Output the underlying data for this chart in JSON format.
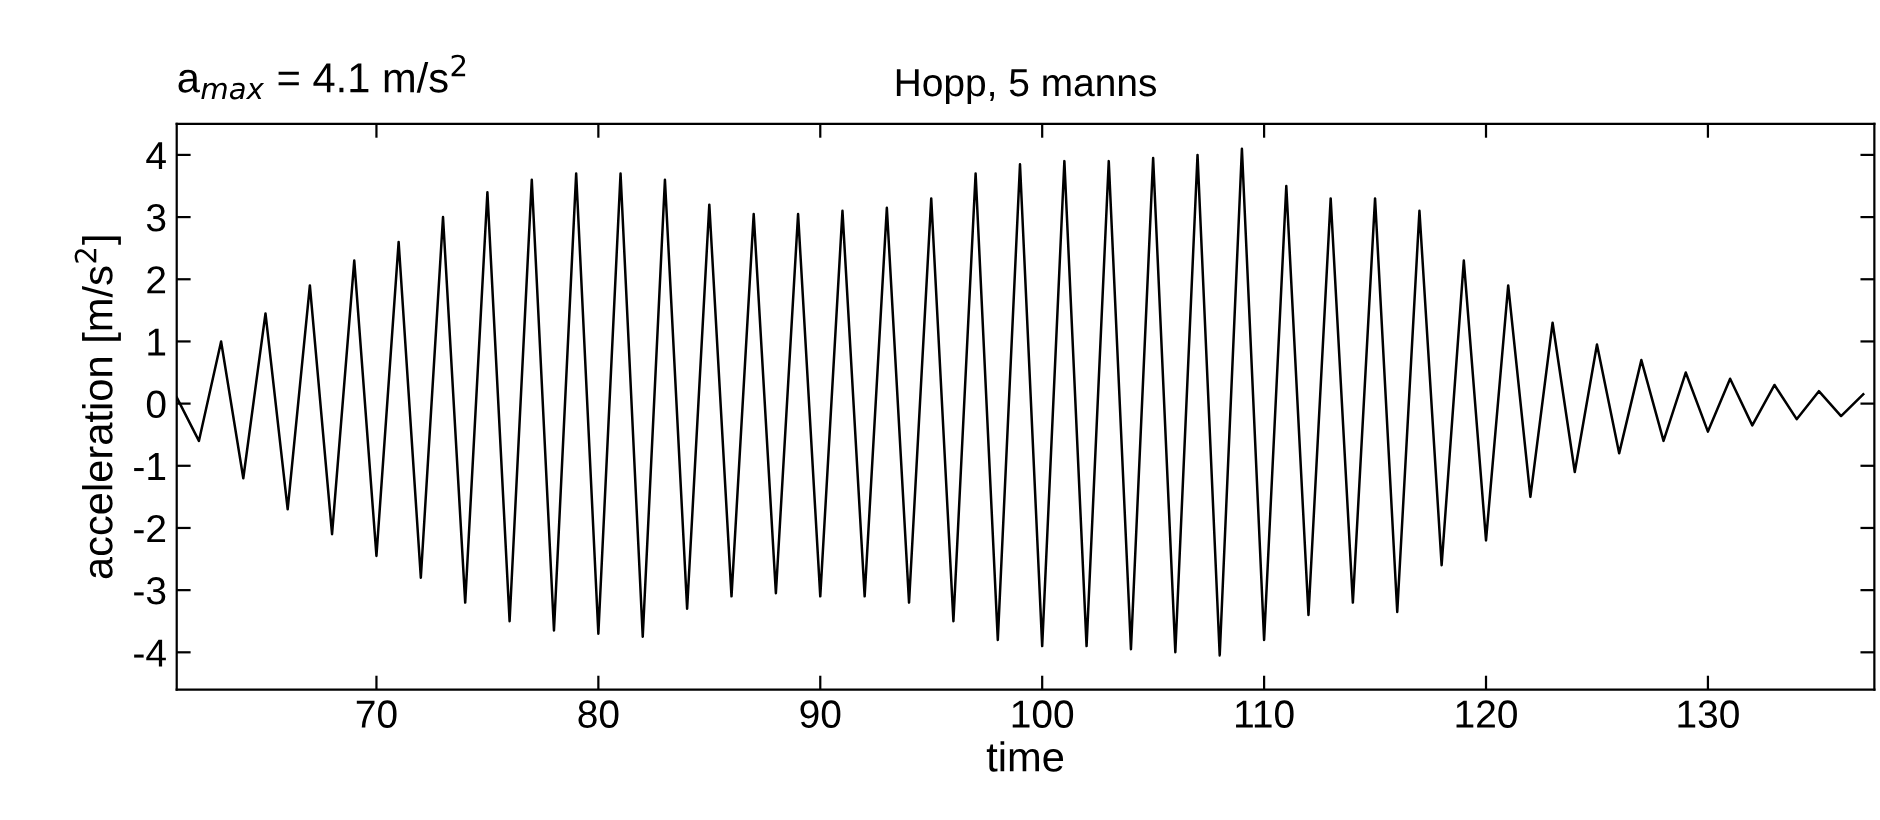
{
  "chart_data": {
    "type": "line",
    "title": "Hopp, 5 manns",
    "xlabel": "time",
    "ylabel": "acceleration [m/s$^{2}$]",
    "annotations": [
      "a$_{max}$ = 4.1 m/s$^{2}$"
    ],
    "x": [
      61,
      62,
      63,
      64,
      65,
      66,
      67,
      68,
      69,
      70,
      71,
      72,
      73,
      74,
      75,
      76,
      77,
      78,
      79,
      80,
      81,
      82,
      83,
      84,
      85,
      86,
      87,
      88,
      89,
      90,
      91,
      92,
      93,
      94,
      95,
      96,
      97,
      98,
      99,
      100,
      101,
      102,
      103,
      104,
      105,
      106,
      107,
      108,
      109,
      110,
      111,
      112,
      113,
      114,
      115,
      116,
      117,
      118,
      119,
      120,
      121,
      122,
      123,
      124,
      125,
      126,
      127,
      128,
      129,
      130,
      131,
      132,
      133,
      134,
      135,
      136,
      137
    ],
    "series": [
      {
        "color": "#000000",
        "values": [
          0.1,
          -0.6,
          1.0,
          -1.2,
          1.45,
          -1.7,
          1.9,
          -2.1,
          2.3,
          -2.45,
          2.6,
          -2.8,
          3.0,
          -3.2,
          3.4,
          -3.5,
          3.6,
          -3.65,
          3.7,
          -3.7,
          3.7,
          -3.75,
          3.6,
          -3.3,
          3.2,
          -3.1,
          3.05,
          -3.05,
          3.05,
          -3.1,
          3.1,
          -3.1,
          3.15,
          -3.2,
          3.3,
          -3.5,
          3.7,
          -3.8,
          3.85,
          -3.9,
          3.9,
          -3.9,
          3.9,
          -3.95,
          3.95,
          -4.0,
          4.0,
          -4.05,
          4.1,
          -3.8,
          3.5,
          -3.4,
          3.3,
          -3.2,
          3.3,
          -3.35,
          3.1,
          -2.6,
          2.3,
          -2.2,
          1.9,
          -1.5,
          1.3,
          -1.1,
          0.95,
          -0.8,
          0.7,
          -0.6,
          0.5,
          -0.45,
          0.4,
          -0.35,
          0.3,
          -0.25,
          0.2,
          -0.2,
          0.15
        ]
      }
    ],
    "xlim": [
      61,
      137.5
    ],
    "ylim": [
      -4.6,
      4.5
    ],
    "xticks": [
      70,
      80,
      90,
      100,
      110,
      120,
      130
    ],
    "yticks": [
      -4,
      -3,
      -2,
      -1,
      0,
      1,
      2,
      3,
      4
    ],
    "grid": false,
    "line_style": "solid",
    "marker": "none"
  }
}
